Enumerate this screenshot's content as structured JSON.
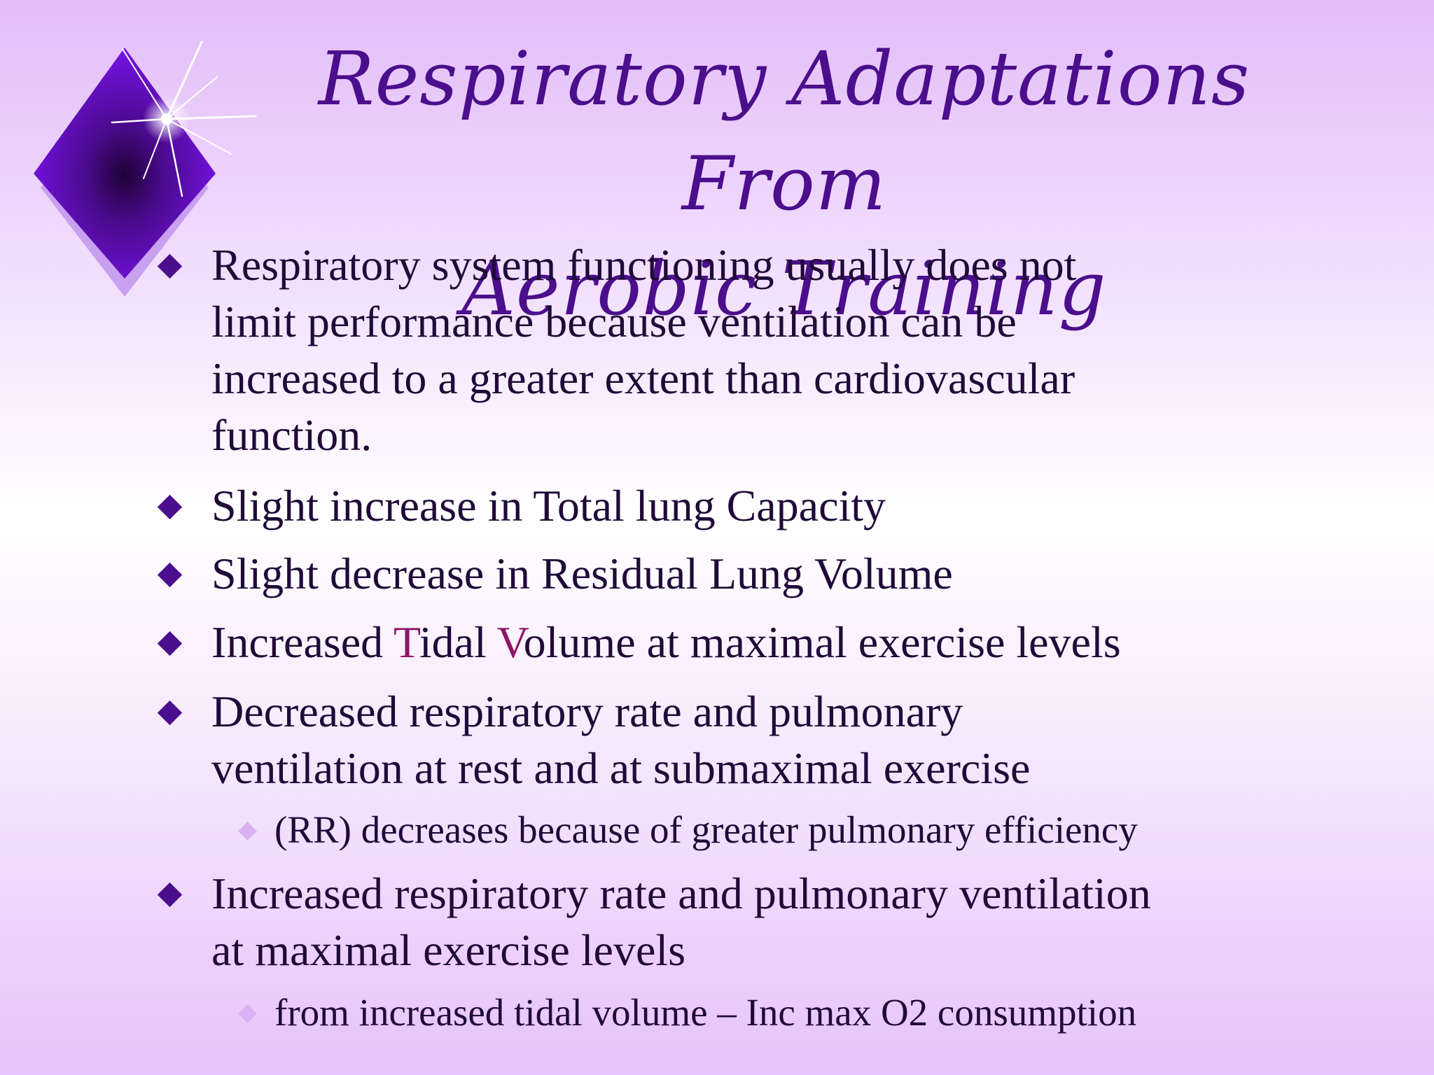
{
  "slide": {
    "title_line1": "Respiratory Adaptations From",
    "title_line2": "Aerobic Training",
    "bullets": [
      {
        "lines": [
          "Respiratory system functioning usually does not",
          "limit performance because ventilation can be",
          "increased to a greater extent than cardiovascular",
          "function."
        ]
      },
      {
        "lines": [
          "Slight increase in Total lung Capacity"
        ]
      },
      {
        "lines": [
          "Slight decrease in Residual Lung Volume"
        ]
      },
      {
        "parts": [
          "Increased ",
          "T",
          "idal ",
          "V",
          "olume at maximal exercise levels"
        ]
      },
      {
        "lines": [
          "Decreased respiratory rate and pulmonary",
          "ventilation at rest and at submaximal exercise"
        ],
        "sub": "(RR) decreases because of greater pulmonary efficiency"
      },
      {
        "lines": [
          "Increased respiratory rate and pulmonary ventilation",
          "at maximal exercise levels"
        ],
        "sub": "from increased tidal volume – Inc max O2 consumption"
      }
    ]
  },
  "colors": {
    "title": "#4b0e8c",
    "text": "#1f0a38",
    "bullet": "#4b0e8c",
    "sub_bullet": "#d8b2f2",
    "highlight": "#8e1567"
  },
  "icons": {
    "logo": "diamond-star-logo-icon",
    "bullet": "diamond-bullet-icon",
    "sub_bullet": "small-diamond-bullet-icon"
  }
}
